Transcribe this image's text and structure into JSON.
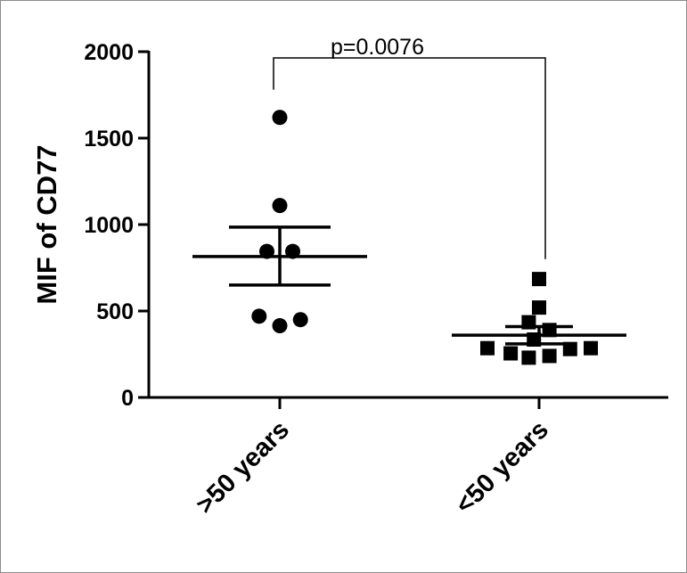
{
  "chart_data": {
    "type": "scatter",
    "title": "",
    "xlabel": "",
    "ylabel": "MIF of CD77",
    "ylim": [
      0,
      2000
    ],
    "yticks": [
      0,
      500,
      1000,
      1500,
      2000
    ],
    "ytick_labels": [
      "0",
      "500",
      "1000",
      "1500",
      "2000"
    ],
    "categories": [
      ">50 years",
      "<50 years"
    ],
    "grid": false,
    "legend": "none",
    "series": [
      {
        "category": ">50 years",
        "marker": "circle",
        "color": "#000000",
        "points": [
          {
            "offset": 0.0,
            "value": 1620
          },
          {
            "offset": 0.0,
            "value": 1110
          },
          {
            "offset": -0.05,
            "value": 845
          },
          {
            "offset": 0.05,
            "value": 845
          },
          {
            "offset": -0.08,
            "value": 470
          },
          {
            "offset": 0.0,
            "value": 415
          },
          {
            "offset": 0.08,
            "value": 450
          }
        ],
        "mean": 815,
        "sem_upper": 985,
        "sem_lower": 650
      },
      {
        "category": "<50 years",
        "marker": "square",
        "color": "#000000",
        "points": [
          {
            "offset": 0.0,
            "value": 685
          },
          {
            "offset": 0.0,
            "value": 520
          },
          {
            "offset": -0.04,
            "value": 435
          },
          {
            "offset": 0.04,
            "value": 390
          },
          {
            "offset": -0.02,
            "value": 335
          },
          {
            "offset": -0.2,
            "value": 285
          },
          {
            "offset": -0.11,
            "value": 255
          },
          {
            "offset": -0.04,
            "value": 230
          },
          {
            "offset": 0.04,
            "value": 240
          },
          {
            "offset": 0.12,
            "value": 280
          },
          {
            "offset": 0.2,
            "value": 285
          }
        ],
        "mean": 360,
        "sem_upper": 410,
        "sem_lower": 310
      }
    ],
    "annotation": {
      "text": "p=0.0076",
      "bracket_top_value": 2000,
      "left_end_value": 1780,
      "right_end_value": 800
    }
  }
}
